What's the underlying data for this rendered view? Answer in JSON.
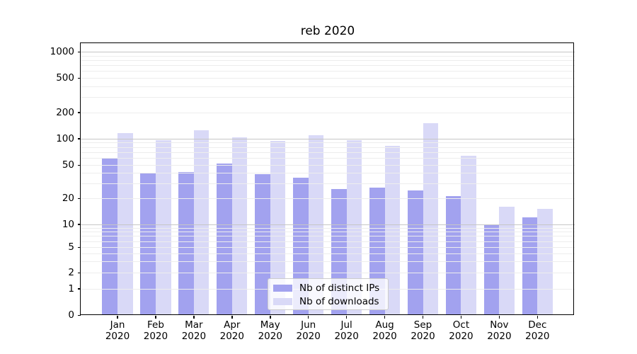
{
  "title": "reb 2020",
  "legend": {
    "items": [
      {
        "label": "Nb of distinct IPs",
        "color": "#a2a2ef"
      },
      {
        "label": "Nb of downloads",
        "color": "#d9d9f7"
      }
    ]
  },
  "axis": {
    "year_line": "2020",
    "months": [
      "Jan",
      "Feb",
      "Mar",
      "Apr",
      "May",
      "Jun",
      "Jul",
      "Aug",
      "Sep",
      "Oct",
      "Nov",
      "Dec"
    ],
    "y_tick_labels": [
      "0",
      "1",
      "2",
      "5",
      "10",
      "20",
      "50",
      "100",
      "200",
      "500",
      "1000"
    ]
  },
  "colors": {
    "bar_ips": "#a2a2ef",
    "bar_downloads": "#d9d9f7",
    "grid_minor": "#ededed",
    "grid_major": "#c6c6c6",
    "spine": "#000000"
  },
  "chart_data": {
    "type": "bar",
    "title": "reb 2020",
    "categories": [
      "Jan 2020",
      "Feb 2020",
      "Mar 2020",
      "Apr 2020",
      "May 2020",
      "Jun 2020",
      "Jul 2020",
      "Aug 2020",
      "Sep 2020",
      "Oct 2020",
      "Nov 2020",
      "Dec 2020"
    ],
    "series": [
      {
        "name": "Nb of distinct IPs",
        "color": "#a2a2ef",
        "values": [
          60,
          40,
          41,
          52,
          39,
          35,
          26,
          27,
          25,
          21,
          10,
          12
        ]
      },
      {
        "name": "Nb of downloads",
        "color": "#d9d9f7",
        "values": [
          115,
          95,
          124,
          103,
          94,
          110,
          96,
          83,
          150,
          64,
          16,
          15
        ]
      }
    ],
    "xlabel": "",
    "ylabel": "",
    "yscale": "symlog",
    "ylim": [
      0,
      1000
    ],
    "yticks": [
      0,
      1,
      2,
      5,
      10,
      20,
      50,
      100,
      200,
      500,
      1000
    ],
    "grid": true,
    "grid_over_bars": true,
    "legend_position": "lower center-left inside plot"
  }
}
